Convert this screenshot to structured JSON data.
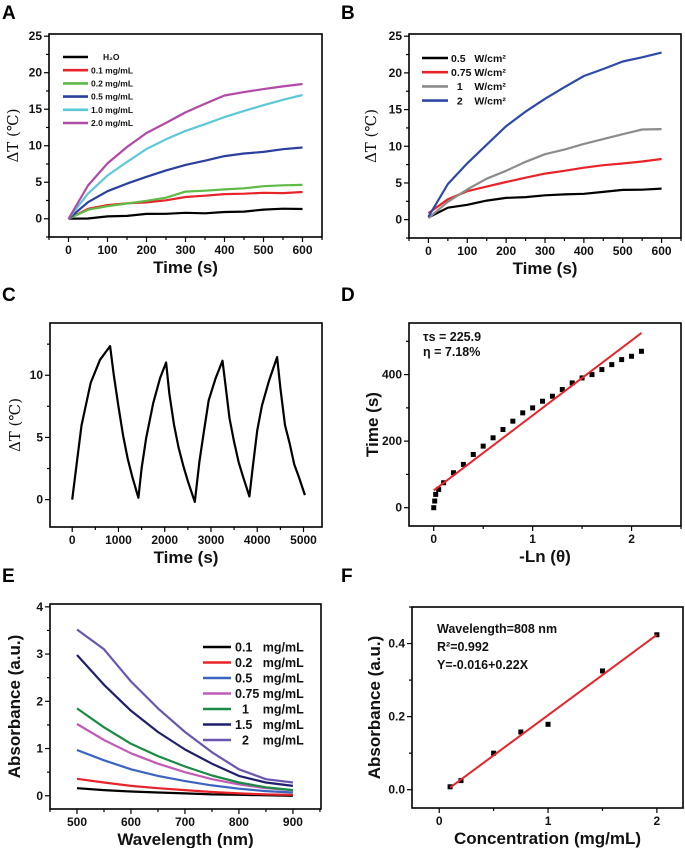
{
  "chart_data": [
    {
      "panel": "A",
      "type": "line",
      "xlabel": "Time (s)",
      "ylabel": "ΔT (℃)",
      "xlim": [
        -50,
        650
      ],
      "ylim": [
        -2.5,
        25.3
      ],
      "xticks": [
        0,
        100,
        200,
        300,
        400,
        500,
        600
      ],
      "yticks": [
        0,
        5,
        10,
        15,
        20,
        25
      ],
      "legend": "top-left",
      "x": [
        0,
        50,
        100,
        150,
        200,
        250,
        300,
        350,
        400,
        450,
        500,
        550,
        600
      ],
      "series": [
        {
          "name": "H₂O",
          "color": "#000000",
          "values": [
            0,
            0.1,
            0.4,
            0.4,
            0.6,
            0.6,
            0.8,
            0.8,
            1.0,
            1.0,
            1.2,
            1.3,
            1.3
          ]
        },
        {
          "name": "0.1 mg/mL",
          "color": "#e8242b",
          "values": [
            0,
            1.3,
            1.8,
            2.1,
            2.3,
            2.6,
            3.0,
            3.1,
            3.3,
            3.4,
            3.6,
            3.6,
            3.7
          ]
        },
        {
          "name": "0.2 mg/mL",
          "color": "#5dbb46",
          "values": [
            0,
            1.3,
            1.8,
            2.1,
            2.4,
            2.8,
            3.7,
            3.9,
            4.1,
            4.2,
            4.4,
            4.5,
            4.6
          ]
        },
        {
          "name": "0.5 mg/mL",
          "color": "#2a3f9e",
          "values": [
            0,
            2.2,
            3.7,
            4.8,
            5.8,
            6.7,
            7.4,
            7.9,
            8.5,
            8.9,
            9.2,
            9.6,
            9.8
          ]
        },
        {
          "name": "1.0 mg/mL",
          "color": "#5cc8d8",
          "values": [
            0,
            3.5,
            6.0,
            7.8,
            9.5,
            10.8,
            12.0,
            13.0,
            14.0,
            14.8,
            15.5,
            16.2,
            16.9
          ]
        },
        {
          "name": "2.0 mg/mL",
          "color": "#b14aa6",
          "values": [
            0,
            4.5,
            7.5,
            9.8,
            11.8,
            13.2,
            14.6,
            15.7,
            16.8,
            17.3,
            17.8,
            18.2,
            18.5
          ]
        }
      ]
    },
    {
      "panel": "B",
      "type": "line",
      "xlabel": "Time (s)",
      "ylabel": "ΔT (℃)",
      "xlim": [
        -50,
        650
      ],
      "ylim": [
        -2.5,
        25.3
      ],
      "xticks": [
        0,
        100,
        200,
        300,
        400,
        500,
        600
      ],
      "yticks": [
        0,
        5,
        10,
        15,
        20,
        25
      ],
      "legend": "top-left",
      "x": [
        0,
        50,
        100,
        150,
        200,
        250,
        300,
        350,
        400,
        450,
        500,
        550,
        600
      ],
      "series": [
        {
          "name": "0.5   W/cm²",
          "color": "#000000",
          "values": [
            0.3,
            1.7,
            2.1,
            2.6,
            2.9,
            3.0,
            3.3,
            3.5,
            3.6,
            3.8,
            4.0,
            4.0,
            4.2
          ]
        },
        {
          "name": "0.75 W/cm²",
          "color": "#e8242b",
          "values": [
            0.9,
            2.7,
            3.8,
            4.5,
            5.2,
            5.8,
            6.3,
            6.6,
            7.0,
            7.4,
            7.7,
            8.0,
            8.3
          ]
        },
        {
          "name": "  1    W/cm²",
          "color": "#8c8c8c",
          "values": [
            0.2,
            2.5,
            4.2,
            5.6,
            6.6,
            7.8,
            8.9,
            9.6,
            10.4,
            11.0,
            11.6,
            12.2,
            12.3
          ]
        },
        {
          "name": "  2    W/cm²",
          "color": "#2d4aa8",
          "values": [
            0.4,
            4.8,
            7.6,
            10.2,
            12.8,
            14.8,
            16.5,
            18.0,
            19.5,
            20.5,
            21.6,
            22.2,
            22.8
          ]
        }
      ]
    },
    {
      "panel": "C",
      "type": "line",
      "xlabel": "Time (s)",
      "ylabel": "ΔT (℃)",
      "xlim": [
        -480,
        5400
      ],
      "ylim": [
        -2.2,
        14.2
      ],
      "xticks": [
        0,
        1000,
        2000,
        3000,
        4000,
        5000
      ],
      "yticks": [
        0,
        5,
        10
      ],
      "x": [
        0,
        100,
        200,
        400,
        600,
        820,
        900,
        1000,
        1100,
        1200,
        1300,
        1430,
        1500,
        1600,
        1750,
        1900,
        2030,
        2100,
        2200,
        2300,
        2400,
        2500,
        2650,
        2750,
        2850,
        2950,
        3100,
        3250,
        3320,
        3400,
        3500,
        3600,
        3700,
        3830,
        3900,
        4000,
        4100,
        4250,
        4430,
        4500,
        4600,
        4700,
        4800,
        4900,
        5030
      ],
      "series": [
        {
          "color": "#000000",
          "values": [
            0,
            3,
            6,
            9.4,
            11.2,
            12.3,
            10,
            7.5,
            5.2,
            3.3,
            1.8,
            0.1,
            2.5,
            5,
            7.8,
            9.8,
            11,
            8.5,
            6,
            4.2,
            2.8,
            1.5,
            -0.2,
            3,
            5.5,
            8,
            9.8,
            11.2,
            9,
            6.5,
            4.6,
            3,
            1.8,
            0.3,
            2.5,
            5.5,
            7.5,
            9.5,
            11.5,
            9,
            6,
            4.5,
            2.8,
            1.8,
            0.4
          ]
        }
      ]
    },
    {
      "panel": "D",
      "type": "scatter",
      "xlabel": "-Ln (θ)",
      "ylabel": "Time (s)",
      "xlim": [
        -0.25,
        2.5
      ],
      "ylim": [
        -55,
        555
      ],
      "xticks": [
        0,
        1,
        2
      ],
      "yticks": [
        0,
        200,
        400
      ],
      "annotations": [
        "τs = 225.9",
        "η = 7.18%"
      ],
      "x": [
        0,
        0.01,
        0.02,
        0.05,
        0.1,
        0.2,
        0.3,
        0.4,
        0.5,
        0.6,
        0.7,
        0.8,
        0.9,
        1.0,
        1.1,
        1.2,
        1.3,
        1.4,
        1.5,
        1.6,
        1.7,
        1.8,
        1.9,
        2.0,
        2.1
      ],
      "series": [
        {
          "color": "#000000",
          "values": [
            0,
            20,
            40,
            55,
            75,
            105,
            130,
            160,
            185,
            210,
            235,
            260,
            285,
            300,
            320,
            335,
            355,
            375,
            390,
            400,
            415,
            430,
            445,
            455,
            470
          ]
        }
      ],
      "fit": {
        "color": "#e8242b",
        "x": [
          0,
          2.1
        ],
        "y": [
          52,
          525
        ]
      }
    },
    {
      "panel": "E",
      "type": "line",
      "xlabel": "Wavelength (nm)",
      "ylabel": "Absorbance (a.u.)",
      "xlim": [
        450,
        952
      ],
      "ylim": [
        -0.28,
        4.06
      ],
      "xticks": [
        500,
        600,
        700,
        800,
        900
      ],
      "yticks": [
        0,
        1,
        2,
        3,
        4
      ],
      "legend": "right",
      "x": [
        500,
        550,
        600,
        650,
        700,
        750,
        800,
        850,
        900
      ],
      "series": [
        {
          "name": "0.1   mg/mL",
          "color": "#000000",
          "values": [
            0.16,
            0.12,
            0.09,
            0.07,
            0.05,
            0.03,
            0.02,
            0.01,
            0.0
          ]
        },
        {
          "name": "0.2   mg/mL",
          "color": "#e8242b",
          "values": [
            0.36,
            0.28,
            0.21,
            0.16,
            0.12,
            0.08,
            0.05,
            0.03,
            0.02
          ]
        },
        {
          "name": "0.5   mg/mL",
          "color": "#3a64c0",
          "values": [
            0.97,
            0.75,
            0.56,
            0.42,
            0.31,
            0.22,
            0.15,
            0.1,
            0.07
          ]
        },
        {
          "name": "0.75 mg/mL",
          "color": "#c25bb5",
          "values": [
            1.52,
            1.18,
            0.9,
            0.68,
            0.5,
            0.35,
            0.24,
            0.16,
            0.12
          ]
        },
        {
          "name": "  1    mg/mL",
          "color": "#1a8a45",
          "values": [
            1.85,
            1.45,
            1.1,
            0.84,
            0.62,
            0.43,
            0.28,
            0.18,
            0.12
          ]
        },
        {
          "name": "1.5   mg/mL",
          "color": "#1f1f6e",
          "values": [
            2.98,
            2.35,
            1.8,
            1.35,
            0.98,
            0.68,
            0.42,
            0.28,
            0.21
          ]
        },
        {
          "name": "  2    mg/mL",
          "color": "#6a55b0",
          "values": [
            3.52,
            3.1,
            2.42,
            1.85,
            1.35,
            0.92,
            0.56,
            0.35,
            0.28
          ]
        }
      ]
    },
    {
      "panel": "F",
      "type": "scatter",
      "xlabel": "Concentration (mg/mL)",
      "ylabel": "Absorbance (a.u.)",
      "xlim": [
        -0.25,
        2.24
      ],
      "ylim": [
        -0.05,
        0.5
      ],
      "xticks": [
        0,
        1,
        2
      ],
      "yticks": [
        0.0,
        0.2,
        0.4
      ],
      "ytick_labels": [
        "0.0",
        "0.2",
        "0.4"
      ],
      "annotations": [
        "Wavelength=808 nm",
        "R²=0.992",
        "Y=-0.016+0.22X"
      ],
      "x": [
        0.1,
        0.2,
        0.5,
        0.75,
        1.0,
        1.5,
        2.0
      ],
      "series": [
        {
          "color": "#000000",
          "values": [
            0.008,
            0.025,
            0.1,
            0.158,
            0.179,
            0.325,
            0.424
          ]
        }
      ],
      "fit": {
        "color": "#e8242b",
        "x": [
          0.1,
          2.0
        ],
        "y": [
          0.006,
          0.424
        ]
      }
    }
  ]
}
